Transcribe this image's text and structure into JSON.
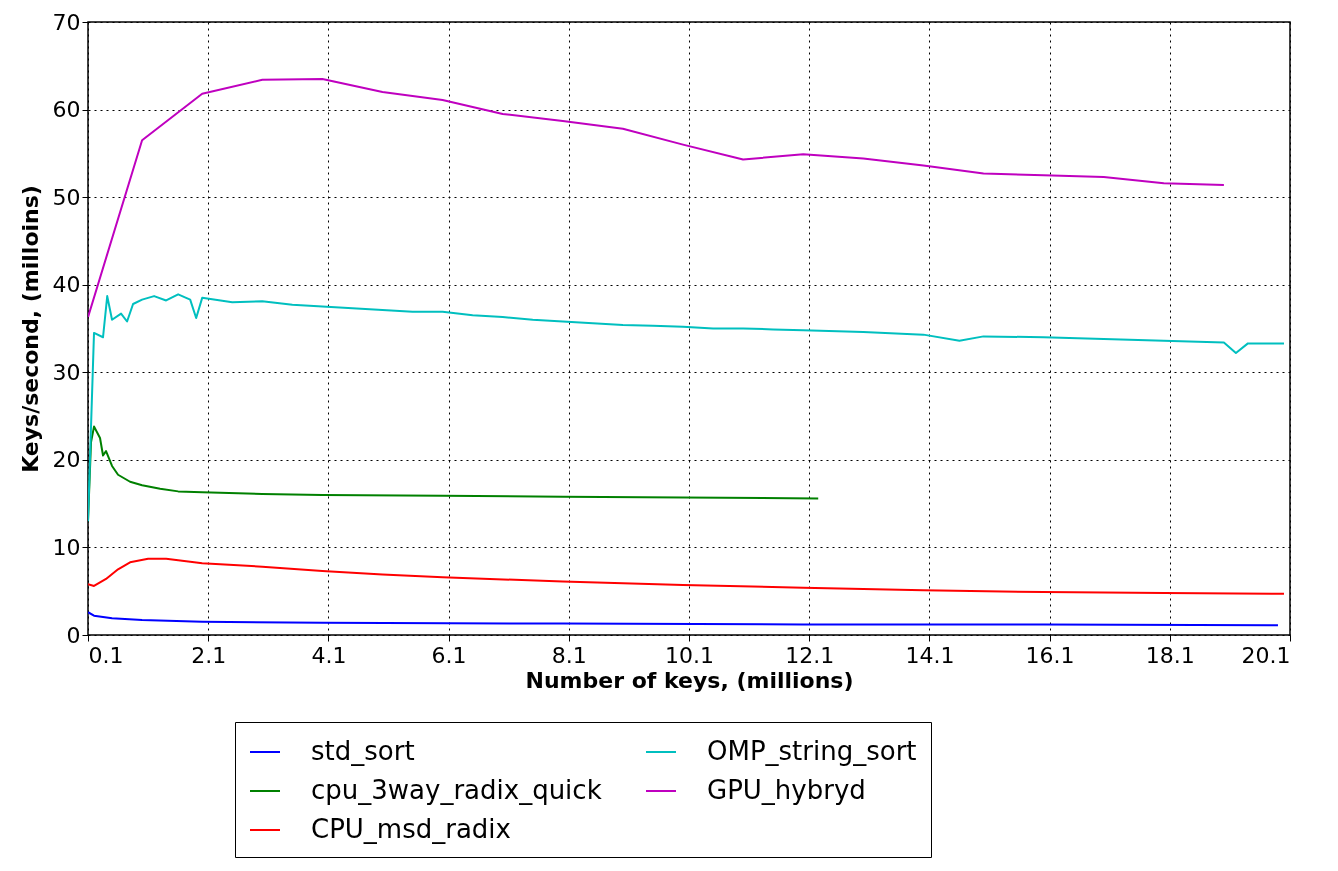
{
  "chart_data": {
    "type": "line",
    "xlabel": "Number of keys, (millions)",
    "ylabel": "Keys/second, (milloins)",
    "xlim": [
      0.1,
      20.1
    ],
    "xticks": [
      0.1,
      2.1,
      4.1,
      6.1,
      8.1,
      10.1,
      12.1,
      14.1,
      16.1,
      18.1,
      20.1
    ],
    "ylim": [
      0,
      70
    ],
    "yticks": [
      0,
      10,
      20,
      30,
      40,
      50,
      60,
      70
    ],
    "grid": true,
    "legend": "bottom",
    "marker": "none",
    "line_style": "solid",
    "series": [
      {
        "name": "std_sort",
        "color": "#0000ff",
        "x": [
          0.1,
          0.2,
          0.5,
          1,
          2,
          4,
          8,
          12,
          16,
          19.9
        ],
        "values": [
          2.6,
          2.2,
          1.9,
          1.7,
          1.5,
          1.4,
          1.3,
          1.2,
          1.2,
          1.1
        ]
      },
      {
        "name": "cpu_3way_radix_quick",
        "color": "#008000",
        "x": [
          0.1,
          0.15,
          0.2,
          0.3,
          0.35,
          0.4,
          0.5,
          0.6,
          0.8,
          1,
          1.3,
          1.6,
          2,
          3,
          4,
          6,
          8,
          10,
          12.25
        ],
        "values": [
          13,
          22,
          23.8,
          22.5,
          20.5,
          21,
          19.3,
          18.3,
          17.5,
          17.1,
          16.7,
          16.4,
          16.3,
          16.1,
          16,
          15.9,
          15.8,
          15.7,
          15.6
        ]
      },
      {
        "name": "CPU_msd_radix",
        "color": "#ff0000",
        "x": [
          0.1,
          0.2,
          0.4,
          0.6,
          0.8,
          1.1,
          1.4,
          2,
          3,
          4,
          5,
          6,
          8,
          10,
          12,
          14,
          16,
          18,
          20
        ],
        "values": [
          5.8,
          5.6,
          6.4,
          7.5,
          8.3,
          8.7,
          8.7,
          8.2,
          7.8,
          7.3,
          6.9,
          6.6,
          6.1,
          5.7,
          5.4,
          5.1,
          4.9,
          4.8,
          4.7
        ]
      },
      {
        "name": "OMP_string_sort",
        "color": "#00bfbf",
        "x": [
          0.1,
          0.2,
          0.35,
          0.42,
          0.5,
          0.65,
          0.75,
          0.85,
          1,
          1.2,
          1.4,
          1.6,
          1.8,
          1.9,
          2,
          2.5,
          3,
          3.5,
          4,
          4.5,
          5,
          5.5,
          6,
          6.5,
          7,
          7.5,
          8,
          8.5,
          9,
          9.5,
          10,
          10.5,
          11,
          11.5,
          12,
          13,
          14,
          14.6,
          15,
          16,
          17,
          18,
          19,
          19.2,
          19.4,
          20
        ],
        "values": [
          13,
          34.5,
          34,
          38.7,
          36,
          36.7,
          35.8,
          37.8,
          38.3,
          38.7,
          38.2,
          38.9,
          38.3,
          36.2,
          38.5,
          38,
          38.1,
          37.7,
          37.5,
          37.3,
          37.1,
          36.9,
          36.9,
          36.5,
          36.3,
          36,
          35.8,
          35.6,
          35.4,
          35.3,
          35.2,
          35,
          35,
          34.9,
          34.8,
          34.6,
          34.3,
          33.6,
          34.1,
          34,
          33.8,
          33.6,
          33.4,
          32.2,
          33.3,
          33.3
        ]
      },
      {
        "name": "GPU_hybryd",
        "color": "#bf00bf",
        "x": [
          0.1,
          1,
          2,
          3,
          4,
          5,
          6,
          7,
          8,
          9,
          10,
          11,
          12,
          13,
          14,
          15,
          16,
          17,
          18,
          19
        ],
        "values": [
          36.3,
          56.5,
          61.8,
          63.4,
          63.5,
          62,
          61.1,
          59.5,
          58.7,
          57.8,
          56,
          54.3,
          54.9,
          54.4,
          53.6,
          52.7,
          52.5,
          52.3,
          51.6,
          51.4
        ]
      }
    ]
  }
}
